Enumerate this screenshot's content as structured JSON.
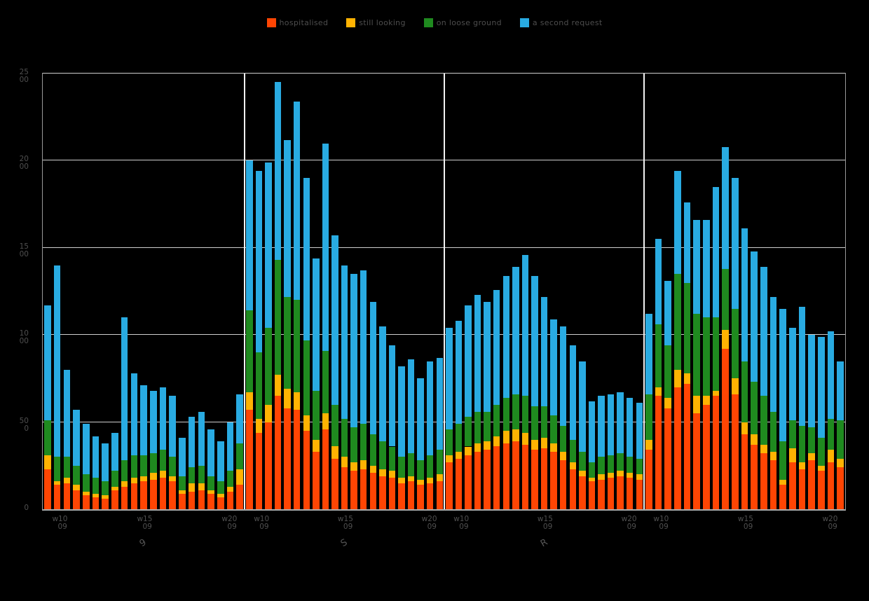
{
  "figure": {
    "background": "#000000",
    "title": ""
  },
  "colors": {
    "grid": "#cfcfcf",
    "frame": "#9a9a9a",
    "panel_separator": "#f2f2f2",
    "tick_text": "#4f4f4f",
    "legend_text": "#4d4d4d"
  },
  "legend": {
    "position": "top-center",
    "items": [
      {
        "label": "hospitalised",
        "color": "#ff4503"
      },
      {
        "label": "still looking",
        "color": "#ffb302"
      },
      {
        "label": "on loose ground",
        "color": "#1f8a1f"
      },
      {
        "label": "a second request",
        "color": "#29abe2"
      }
    ]
  },
  "chart_data": {
    "type": "bar",
    "stacked": true,
    "title": "",
    "xlabel": "",
    "ylabel": "",
    "ylim": [
      0,
      2500
    ],
    "grid": true,
    "legend_position": "top-center",
    "yticks": [
      0,
      500,
      1000,
      1500,
      2000,
      2500
    ],
    "ytick_labels": [
      "0",
      "500",
      "1000",
      "1500",
      "2000",
      "2500"
    ],
    "series": [
      {
        "name": "hospitalised",
        "color": "#ff4503"
      },
      {
        "name": "still looking",
        "color": "#ffb302"
      },
      {
        "name": "on loose ground",
        "color": "#1f8a1f"
      },
      {
        "name": "a second request",
        "color": "#29abe2"
      }
    ],
    "panels": [
      {
        "label": "9",
        "xticks": [
          {
            "line1": "w10",
            "line2": "09"
          },
          {
            "line1": "w15",
            "line2": "09"
          },
          {
            "line1": "w20",
            "line2": "09"
          }
        ],
        "bars": [
          [
            230,
            80,
            200,
            660
          ],
          [
            140,
            20,
            140,
            1100
          ],
          [
            150,
            30,
            120,
            500
          ],
          [
            110,
            30,
            110,
            320
          ],
          [
            80,
            20,
            100,
            290
          ],
          [
            70,
            20,
            90,
            240
          ],
          [
            60,
            20,
            80,
            220
          ],
          [
            110,
            20,
            90,
            220
          ],
          [
            130,
            30,
            120,
            820
          ],
          [
            150,
            30,
            130,
            470
          ],
          [
            160,
            30,
            120,
            400
          ],
          [
            170,
            40,
            110,
            360
          ],
          [
            180,
            40,
            120,
            360
          ],
          [
            160,
            30,
            110,
            350
          ],
          [
            90,
            20,
            80,
            220
          ],
          [
            100,
            50,
            90,
            290
          ],
          [
            110,
            40,
            100,
            310
          ],
          [
            90,
            20,
            80,
            270
          ],
          [
            70,
            20,
            70,
            230
          ],
          [
            100,
            30,
            90,
            280
          ],
          [
            140,
            90,
            150,
            280
          ]
        ]
      },
      {
        "label": "S",
        "xticks": [
          {
            "line1": "w10",
            "line2": "09"
          },
          {
            "line1": "w15",
            "line2": "09"
          },
          {
            "line1": "w20",
            "line2": "09"
          }
        ],
        "bars": [
          [
            570,
            100,
            470,
            860
          ],
          [
            440,
            80,
            380,
            1040
          ],
          [
            500,
            100,
            440,
            950
          ],
          [
            650,
            120,
            660,
            1020
          ],
          [
            580,
            110,
            530,
            900
          ],
          [
            570,
            100,
            530,
            1140
          ],
          [
            450,
            90,
            430,
            930
          ],
          [
            330,
            70,
            280,
            760
          ],
          [
            460,
            90,
            360,
            1190
          ],
          [
            290,
            70,
            240,
            970
          ],
          [
            240,
            60,
            220,
            880
          ],
          [
            220,
            50,
            200,
            880
          ],
          [
            230,
            50,
            210,
            880
          ],
          [
            210,
            40,
            180,
            760
          ],
          [
            190,
            40,
            160,
            660
          ],
          [
            180,
            40,
            140,
            580
          ],
          [
            150,
            30,
            120,
            520
          ],
          [
            160,
            30,
            130,
            540
          ],
          [
            140,
            30,
            110,
            470
          ],
          [
            150,
            30,
            130,
            540
          ],
          [
            160,
            40,
            140,
            530
          ]
        ]
      },
      {
        "label": "R",
        "xticks": [
          {
            "line1": "w10",
            "line2": "09"
          },
          {
            "line1": "w15",
            "line2": "09"
          },
          {
            "line1": "w20",
            "line2": "09"
          }
        ],
        "bars": [
          [
            270,
            40,
            150,
            580
          ],
          [
            290,
            40,
            160,
            590
          ],
          [
            310,
            50,
            170,
            640
          ],
          [
            330,
            50,
            180,
            670
          ],
          [
            340,
            50,
            170,
            630
          ],
          [
            360,
            60,
            180,
            660
          ],
          [
            380,
            70,
            190,
            700
          ],
          [
            390,
            70,
            200,
            730
          ],
          [
            370,
            70,
            210,
            810
          ],
          [
            340,
            60,
            190,
            750
          ],
          [
            350,
            60,
            180,
            630
          ],
          [
            330,
            50,
            160,
            550
          ],
          [
            280,
            50,
            150,
            570
          ],
          [
            230,
            40,
            130,
            540
          ],
          [
            190,
            30,
            110,
            520
          ],
          [
            160,
            20,
            90,
            350
          ],
          [
            170,
            30,
            100,
            350
          ],
          [
            180,
            30,
            100,
            350
          ],
          [
            190,
            30,
            100,
            350
          ],
          [
            180,
            30,
            90,
            340
          ],
          [
            170,
            30,
            90,
            320
          ]
        ]
      },
      {
        "label": "",
        "xticks": [
          {
            "line1": "w10",
            "line2": "09"
          },
          {
            "line1": "w15",
            "line2": "09"
          },
          {
            "line1": "w20",
            "line2": "09"
          }
        ],
        "bars": [
          [
            340,
            60,
            260,
            460
          ],
          [
            650,
            50,
            360,
            490
          ],
          [
            580,
            60,
            300,
            370
          ],
          [
            700,
            100,
            550,
            590
          ],
          [
            720,
            60,
            520,
            460
          ],
          [
            550,
            100,
            470,
            540
          ],
          [
            600,
            50,
            450,
            560
          ],
          [
            650,
            30,
            420,
            750
          ],
          [
            920,
            110,
            350,
            700
          ],
          [
            660,
            90,
            400,
            750
          ],
          [
            430,
            70,
            350,
            760
          ],
          [
            370,
            60,
            300,
            750
          ],
          [
            320,
            50,
            280,
            740
          ],
          [
            280,
            50,
            230,
            660
          ],
          [
            140,
            30,
            220,
            760
          ],
          [
            270,
            80,
            160,
            530
          ],
          [
            230,
            40,
            210,
            680
          ],
          [
            280,
            40,
            150,
            530
          ],
          [
            220,
            30,
            160,
            580
          ],
          [
            270,
            70,
            180,
            500
          ],
          [
            240,
            50,
            220,
            340
          ]
        ]
      }
    ]
  }
}
